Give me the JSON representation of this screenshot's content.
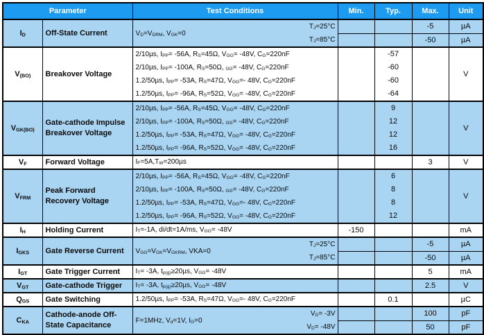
{
  "header": {
    "parameter": "Parameter",
    "test_conditions": "Test Conditions",
    "min": "Min.",
    "typ": "Typ.",
    "max": "Max.",
    "unit": "Unit"
  },
  "colors": {
    "header_bg": "#1D9BF0",
    "header_text": "#FFFFFF",
    "shaded_row_bg": "#A9D5F3",
    "plain_row_bg": "#FFFFFF",
    "border": "#000000",
    "body_text": "#0A0A0A"
  },
  "rows": [
    {
      "symbol": "I~D~",
      "name": "Off-State Current",
      "shaded": true,
      "dividers": true,
      "cond": {
        "main": "V~D~=V~DRM~, V~GK~=0",
        "right": [
          "T~J~=25°C",
          "T~J~=85°C"
        ]
      },
      "min": [
        "",
        ""
      ],
      "typ": [
        "",
        ""
      ],
      "max": [
        "-5",
        "-50"
      ],
      "unit": [
        "µA",
        "µA"
      ]
    },
    {
      "symbol": "V~(BO)~",
      "name": "Breakover Voltage",
      "shaded": false,
      "dividers": false,
      "cond": {
        "lines": [
          "2/10µs, I~PP~= -56A, R~S~=45Ω, V~GG~= -48V, C~G~=220nF",
          "2/10µs, I~PP~= -100A, R~S~=50Ω, ~GG~= -48V, C~G~=220nF",
          "1.2/50µs, I~PP~= -53A, R~S~=47Ω, V~GG~=- 48V, C~G~=220nF",
          "1.2/50µs, I~PP~= -96A, R~S~=52Ω, V~GG~= -48V, C~G~=220nF"
        ]
      },
      "min": [
        ""
      ],
      "typ": [
        "-57",
        "-60",
        "-60",
        "-64"
      ],
      "max": [
        ""
      ],
      "unit": [
        "V"
      ]
    },
    {
      "symbol": "V~GK(BO)~",
      "name": "Gate-cathode Impulse Breakover Voltage",
      "shaded": true,
      "dividers": false,
      "cond": {
        "lines": [
          "2/10µs, I~PP~= -56A, R~S~=45Ω, V~GG~= -48V, C~G~=220nF",
          "2/10µs, I~PP~= -100A, R~S~=50Ω, ~GG~= -48V, C~G~=220nF",
          "1.2/50µs, I~PP~= -53A, R~S~=47Ω, V~GG~= -48V, C~G~=220nF",
          "1.2/50µs, I~PP~= -96A, R~S~=52Ω, V~GG~= -48V, C~G~=220nF"
        ]
      },
      "min": [
        ""
      ],
      "typ": [
        "9",
        "12",
        "12",
        "16"
      ],
      "max": [
        ""
      ],
      "unit": [
        "V"
      ]
    },
    {
      "symbol": "V~F~",
      "name": "Forward Voltage",
      "shaded": false,
      "dividers": false,
      "cond": {
        "main": "I~F~=5A,T~W~=200µs"
      },
      "min": [
        ""
      ],
      "typ": [
        ""
      ],
      "max": [
        "3"
      ],
      "unit": [
        "V"
      ]
    },
    {
      "symbol": "V~FRM~",
      "name": "Peak Forward Recovery Voltage",
      "shaded": true,
      "dividers": false,
      "cond": {
        "lines": [
          "2/10µs, I~PP~= -56A, R~S~=45Ω, V~GG~= -48V, C~G~=220nF",
          "2/10µs, I~PP~= -100A, R~S~=50Ω, ~GG~= -48V, C~G~=220nF",
          "1.2/50µs, I~PP~= -53A, R~S~=47Ω, V~GG~=- 48V, C~G~=220nF",
          "1.2/50µs, I~PP~= -96A, R~S~=52Ω, V~GG~= -48V, C~G~=220nF"
        ]
      },
      "min": [
        ""
      ],
      "typ": [
        "6",
        "8",
        "8",
        "12"
      ],
      "max": [
        ""
      ],
      "unit": [
        "V"
      ]
    },
    {
      "symbol": "I~H~",
      "name": "Holding Current",
      "shaded": false,
      "dividers": false,
      "cond": {
        "main": "I~T~=-1A, di/dt=1A/ms, V~GG~= -48V"
      },
      "min": [
        "-150"
      ],
      "typ": [
        ""
      ],
      "max": [
        ""
      ],
      "unit": [
        "mA"
      ]
    },
    {
      "symbol": "I~GKS~",
      "name": "Gate Reverse Current",
      "shaded": true,
      "dividers": true,
      "cond": {
        "main": "V~GG~=V~GK~=V~GKRM~, VKA=0",
        "right": [
          "T~J~=25°C",
          "T~J~=85°C"
        ]
      },
      "min": [
        "",
        ""
      ],
      "typ": [
        "",
        ""
      ],
      "max": [
        "-5",
        "-50"
      ],
      "unit": [
        "µA",
        "µA"
      ]
    },
    {
      "symbol": "I~GT~",
      "name": "Gate Trigger Current",
      "shaded": false,
      "dividers": false,
      "cond": {
        "main": "I~T~= -3A, t~p(g)~≥20µs, V~GG~= -48V"
      },
      "min": [
        ""
      ],
      "typ": [
        ""
      ],
      "max": [
        "5"
      ],
      "unit": [
        "mA"
      ]
    },
    {
      "symbol": "V~GT~",
      "name": "Gate-cathode Trigger",
      "shaded": true,
      "dividers": false,
      "cond": {
        "main": "I~T~= -3A, t~p(g)~≥20µs, V~GG~= -48V"
      },
      "min": [
        ""
      ],
      "typ": [
        ""
      ],
      "max": [
        "2.5"
      ],
      "unit": [
        "V"
      ]
    },
    {
      "symbol": "Q~GS~",
      "name": "Gate Switching",
      "shaded": false,
      "dividers": false,
      "cond": {
        "main": "1.2/50µs, I~PP~= -53A, R~S~=47Ω, V~GG~=- 48V, C~G~=220nF"
      },
      "min": [
        ""
      ],
      "typ": [
        "0.1"
      ],
      "max": [
        ""
      ],
      "unit": [
        "µC"
      ]
    },
    {
      "symbol": "C~KA~",
      "name": "Cathode-anode Off-State Capacitance",
      "shaded": true,
      "dividers": true,
      "cond": {
        "main": "F=1MHz, V~d~=1V, I~G~=0",
        "right": [
          "V~D~= -3V",
          "V~D~= -48V"
        ]
      },
      "min": [
        "",
        ""
      ],
      "typ": [
        "",
        ""
      ],
      "max": [
        "100",
        "50"
      ],
      "unit": [
        "pF",
        "pF"
      ]
    }
  ]
}
